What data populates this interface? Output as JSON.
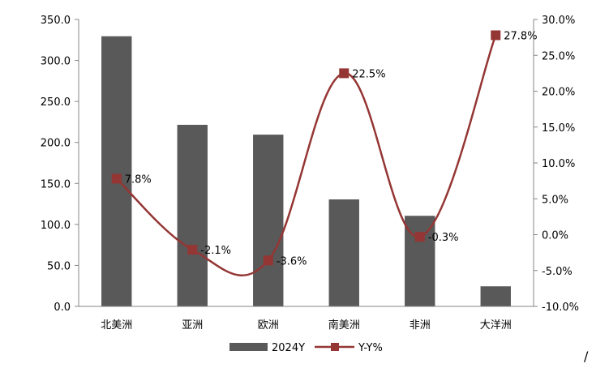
{
  "chart_data": {
    "type": "bar",
    "categories": [
      "北美洲",
      "亚洲",
      "欧洲",
      "南美洲",
      "非洲",
      "大洋洲"
    ],
    "series": [
      {
        "name": "2024Y",
        "type": "bar",
        "axis": "left",
        "color": "#595959",
        "values": [
          329.5,
          221.5,
          209.5,
          130.5,
          110.5,
          24.5
        ]
      },
      {
        "name": "Y-Y%",
        "type": "line",
        "axis": "right",
        "color": "#943634",
        "smooth": true,
        "marker": "square",
        "values": [
          7.8,
          -2.1,
          -3.6,
          22.5,
          -0.3,
          27.8
        ],
        "labels": [
          "7.8%",
          "-2.1%",
          "-3.6%",
          "22.5%",
          "-0.3%",
          "27.8%"
        ]
      }
    ],
    "y_left": {
      "ylim": [
        0,
        350
      ],
      "ticks": [
        "0.0",
        "50.0",
        "100.0",
        "150.0",
        "200.0",
        "250.0",
        "300.0",
        "350.0"
      ]
    },
    "y_right": {
      "ylim": [
        -10,
        30
      ],
      "ticks": [
        "-10.0%",
        "-5.0%",
        "0.0%",
        "5.0%",
        "10.0%",
        "15.0%",
        "20.0%",
        "25.0%",
        "30.0%"
      ]
    },
    "grid": false,
    "legend": "bottom-center"
  },
  "page": {
    "trailing_mark": "/"
  }
}
